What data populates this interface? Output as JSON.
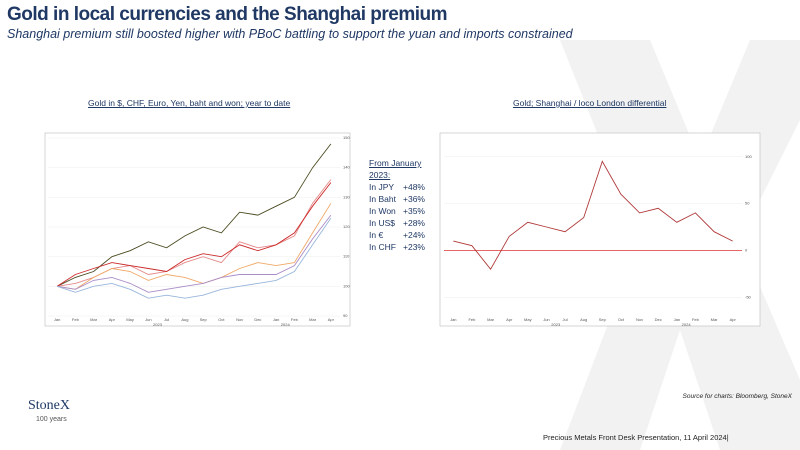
{
  "slide": {
    "title": "Gold in local currencies and the Shanghai premium",
    "subtitle": "Shanghai premium still boosted higher with PBoC battling to support the yuan and imports constrained",
    "textbox_heading": "From January 2023:",
    "source": "Source for charts: Bloomberg, StoneX",
    "footer": "Precious Metals Front Desk Presentation, 11 April 2024|",
    "logo": "StoneX",
    "logo_sub": "100 years"
  },
  "chart_data": [
    {
      "type": "line",
      "title": "Gold in $, CHF, Euro, Yen, baht and won; year to date",
      "categories": [
        "Jan",
        "Feb",
        "Mar",
        "Apr",
        "May",
        "Jun",
        "Jul",
        "Aug",
        "Sep",
        "Oct",
        "Nov",
        "Dec",
        "Jan",
        "Feb",
        "Mar",
        "Apr"
      ],
      "years": [
        "2023",
        "2024"
      ],
      "ylim": [
        90,
        150
      ],
      "yticks": [
        90,
        100,
        110,
        120,
        130,
        140,
        150
      ],
      "grid": true,
      "series": [
        {
          "name": "In JPY",
          "change_label": "+48%",
          "color": "#4b4b22",
          "values": [
            100,
            103,
            105,
            110,
            112,
            115,
            113,
            117,
            120,
            118,
            125,
            124,
            127,
            130,
            140,
            148
          ]
        },
        {
          "name": "In Baht",
          "change_label": "+36%",
          "color": "#e58a8a",
          "values": [
            100,
            101,
            103,
            106,
            107,
            104,
            105,
            108,
            110,
            108,
            115,
            113,
            114,
            117,
            128,
            136
          ]
        },
        {
          "name": "In Won",
          "change_label": "+35%",
          "color": "#cc2a2a",
          "values": [
            100,
            104,
            106,
            108,
            107,
            106,
            105,
            109,
            111,
            110,
            114,
            112,
            114,
            118,
            127,
            135
          ]
        },
        {
          "name": "In US$",
          "change_label": "+28%",
          "color": "#f0a868",
          "values": [
            100,
            99,
            103,
            106,
            105,
            102,
            104,
            103,
            101,
            103,
            106,
            108,
            107,
            108,
            118,
            128
          ]
        },
        {
          "name": "In €",
          "change_label": "+24%",
          "color": "#a98cc8",
          "values": [
            100,
            99,
            102,
            103,
            101,
            98,
            99,
            100,
            101,
            103,
            104,
            104,
            104,
            107,
            116,
            124
          ]
        },
        {
          "name": "In CHF",
          "change_label": "+23%",
          "color": "#98b6dc",
          "values": [
            100,
            98,
            100,
            101,
            99,
            96,
            97,
            96,
            97,
            99,
            100,
            101,
            102,
            105,
            114,
            123
          ]
        }
      ]
    },
    {
      "type": "line",
      "title": "Gold; Shanghai  / loco London  differential",
      "categories": [
        "Jan",
        "Feb",
        "Mar",
        "Apr",
        "May",
        "Jun",
        "Jul",
        "Aug",
        "Sep",
        "Oct",
        "Nov",
        "Dec",
        "Jan",
        "Feb",
        "Mar",
        "Apr"
      ],
      "years": [
        "2023",
        "2024"
      ],
      "ylim": [
        -70,
        120
      ],
      "yticks": [
        -50,
        0,
        50,
        100
      ],
      "grid": true,
      "zero_line_color": "#e05050",
      "series": [
        {
          "name": "Premium",
          "color": "#b03a3a",
          "values": [
            10,
            5,
            -20,
            15,
            30,
            25,
            20,
            35,
            95,
            60,
            40,
            45,
            30,
            40,
            20,
            10
          ]
        }
      ]
    }
  ]
}
